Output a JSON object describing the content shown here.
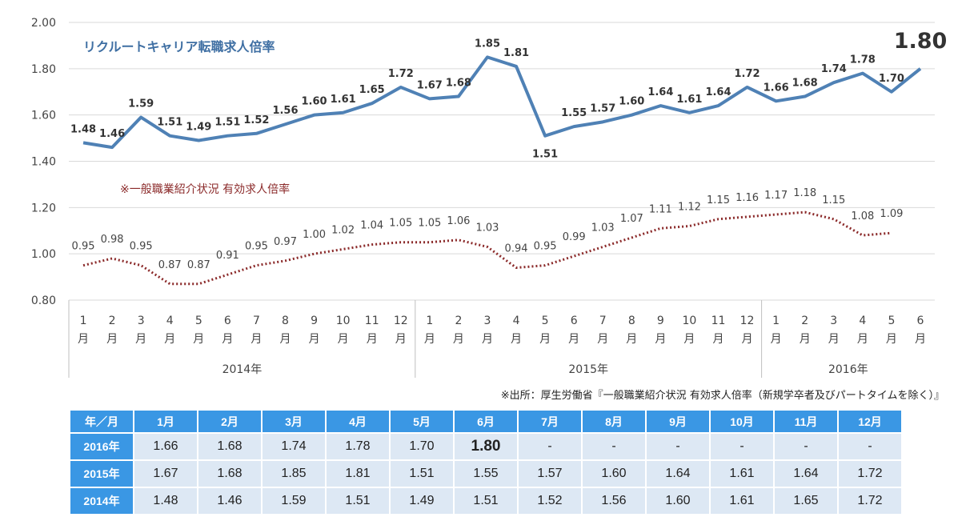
{
  "chart_data": {
    "type": "line",
    "title": "リクルートキャリア転職求人倍率",
    "secondary_label": "※一般職業紹介状況 有効求人倍率",
    "highlight_label": "1.80",
    "y_axis": {
      "min": 0.8,
      "max": 2.0,
      "ticks": [
        "0.80",
        "1.00",
        "1.20",
        "1.40",
        "1.60",
        "1.80",
        "2.00"
      ]
    },
    "grid": true,
    "x_month_numbers": [
      "1",
      "2",
      "3",
      "4",
      "5",
      "6",
      "7",
      "8",
      "9",
      "10",
      "11",
      "12",
      "1",
      "2",
      "3",
      "4",
      "5",
      "6",
      "7",
      "8",
      "9",
      "10",
      "11",
      "12",
      "1",
      "2",
      "3",
      "4",
      "5",
      "6"
    ],
    "month_char": "月",
    "years": [
      "2014年",
      "2015年",
      "2016年"
    ],
    "series": [
      {
        "key": "recruit",
        "color": "#4f81b5",
        "values": [
          1.48,
          1.46,
          1.59,
          1.51,
          1.49,
          1.51,
          1.52,
          1.56,
          1.6,
          1.61,
          1.65,
          1.72,
          1.67,
          1.68,
          1.85,
          1.81,
          1.51,
          1.55,
          1.57,
          1.6,
          1.64,
          1.61,
          1.64,
          1.72,
          1.66,
          1.68,
          1.74,
          1.78,
          1.7,
          1.8
        ],
        "labels": [
          "1.48",
          "1.46",
          "1.59",
          "1.51",
          "1.49",
          "1.51",
          "1.52",
          "1.56",
          "1.60",
          "1.61",
          "1.65",
          "1.72",
          "1.67",
          "1.68",
          "1.85",
          "1.81",
          "1.51",
          "1.55",
          "1.57",
          "1.60",
          "1.64",
          "1.61",
          "1.64",
          "1.72",
          "1.66",
          "1.68",
          "1.74",
          "1.78",
          "1.70",
          ""
        ]
      },
      {
        "key": "general",
        "color": "#8b2a2a",
        "values": [
          0.95,
          0.98,
          0.95,
          0.87,
          0.87,
          0.91,
          0.95,
          0.97,
          1.0,
          1.02,
          1.04,
          1.05,
          1.05,
          1.06,
          1.03,
          0.94,
          0.95,
          0.99,
          1.03,
          1.07,
          1.11,
          1.12,
          1.15,
          1.16,
          1.17,
          1.18,
          1.15,
          1.08,
          1.09
        ],
        "labels": [
          "0.95",
          "0.98",
          "0.95",
          "0.87",
          "0.87",
          "0.91",
          "0.95",
          "0.97",
          "1.00",
          "1.02",
          "1.04",
          "1.05",
          "1.05",
          "1.06",
          "1.03",
          "0.94",
          "0.95",
          "0.99",
          "1.03",
          "1.07",
          "1.11",
          "1.12",
          "1.15",
          "1.16",
          "1.17",
          "1.18",
          "1.15",
          "1.08",
          "1.09"
        ]
      }
    ]
  },
  "source_note": "※出所：厚生労働省『一般職業紹介状況 有効求人倍率（新規学卒者及びパートタイムを除く）』",
  "table": {
    "corner": "年／月",
    "months": [
      "1月",
      "2月",
      "3月",
      "4月",
      "5月",
      "6月",
      "7月",
      "8月",
      "9月",
      "10月",
      "11月",
      "12月"
    ],
    "rows": [
      {
        "year": "2016年",
        "values": [
          "1.66",
          "1.68",
          "1.74",
          "1.78",
          "1.70",
          "1.80",
          "-",
          "-",
          "-",
          "-",
          "-",
          "-"
        ]
      },
      {
        "year": "2015年",
        "values": [
          "1.67",
          "1.68",
          "1.85",
          "1.81",
          "1.51",
          "1.55",
          "1.57",
          "1.60",
          "1.64",
          "1.61",
          "1.64",
          "1.72"
        ]
      },
      {
        "year": "2014年",
        "values": [
          "1.48",
          "1.46",
          "1.59",
          "1.51",
          "1.49",
          "1.51",
          "1.52",
          "1.56",
          "1.60",
          "1.61",
          "1.65",
          "1.72"
        ]
      }
    ]
  }
}
